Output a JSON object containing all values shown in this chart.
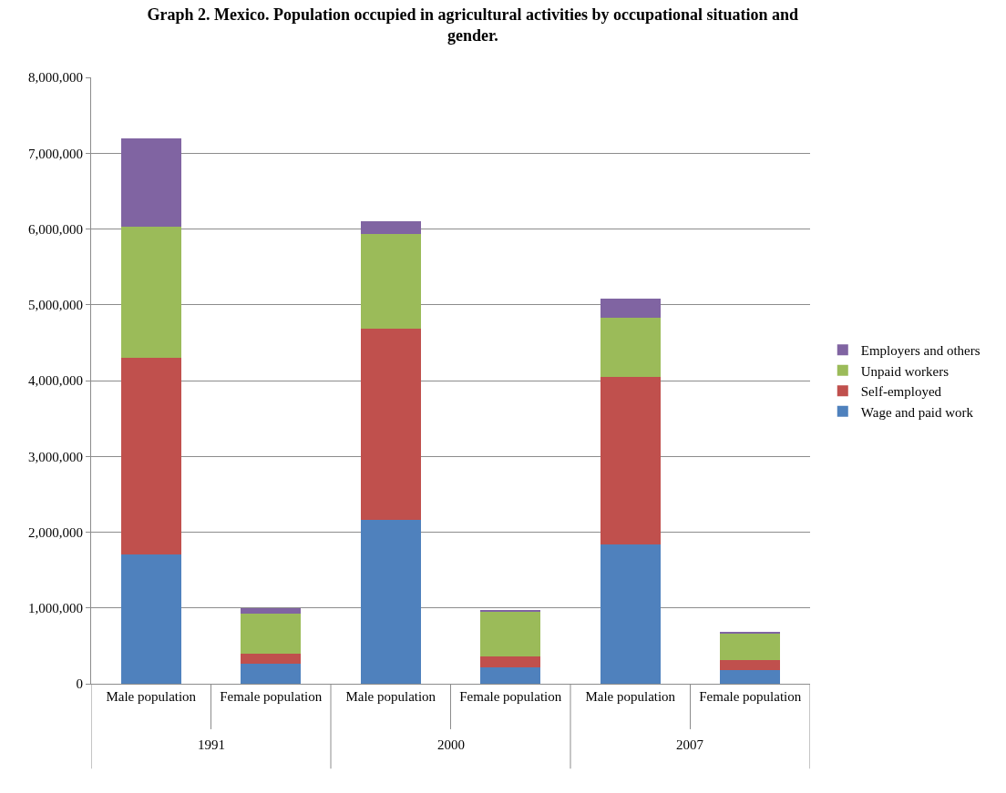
{
  "chart_data": {
    "type": "bar",
    "stacked": true,
    "title": "Graph 2. Mexico. Population occupied in agricultural activities by occupational situation and gender.",
    "categories": [
      "Male population",
      "Female population",
      "Male population",
      "Female population",
      "Male population",
      "Female population"
    ],
    "annotations": [
      "1991",
      "2000",
      "2007"
    ],
    "series": [
      {
        "name": "Wage and paid work",
        "color": "#4f81bd",
        "values": [
          1700000,
          260000,
          2160000,
          220000,
          1840000,
          180000
        ]
      },
      {
        "name": "Self-employed",
        "color": "#c0504d",
        "values": [
          2600000,
          140000,
          2520000,
          140000,
          2210000,
          130000
        ]
      },
      {
        "name": "Unpaid workers",
        "color": "#9bbb59",
        "values": [
          1730000,
          520000,
          1250000,
          590000,
          780000,
          360000
        ]
      },
      {
        "name": "Employers and others",
        "color": "#8064a2",
        "values": [
          1160000,
          80000,
          170000,
          20000,
          250000,
          20000
        ]
      }
    ],
    "ylim": [
      0,
      8000000
    ],
    "yticks": [
      {
        "value": 0,
        "label": "0"
      },
      {
        "value": 1000000,
        "label": "1,000,000"
      },
      {
        "value": 2000000,
        "label": "2,000,000"
      },
      {
        "value": 3000000,
        "label": "3,000,000"
      },
      {
        "value": 4000000,
        "label": "4,000,000"
      },
      {
        "value": 5000000,
        "label": "5,000,000"
      },
      {
        "value": 6000000,
        "label": "6,000,000"
      },
      {
        "value": 7000000,
        "label": "7,000,000"
      },
      {
        "value": 8000000,
        "label": "8,000,000"
      }
    ],
    "grid": "y",
    "legend": "right"
  }
}
